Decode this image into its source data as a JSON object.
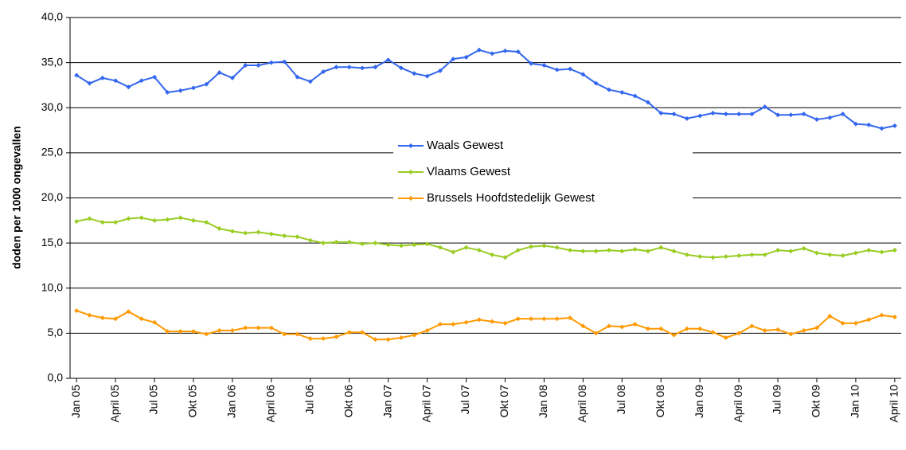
{
  "chart_data": {
    "type": "line",
    "y_label": "doden per  1000 ongevallen",
    "categories": [
      "Jan 05",
      null,
      null,
      "April 05",
      null,
      null,
      "Jul 05",
      null,
      null,
      "Okt 05",
      null,
      null,
      "Jan 06",
      null,
      null,
      "April 06",
      null,
      null,
      "Jul 06",
      null,
      null,
      "Okt 06",
      null,
      null,
      "Jan 07",
      null,
      null,
      "April 07",
      null,
      null,
      "Jul 07",
      null,
      null,
      "Okt 07",
      null,
      null,
      "Jan 08",
      null,
      null,
      "April 08",
      null,
      null,
      "Jul 08",
      null,
      null,
      "Okt 08",
      null,
      null,
      "Jan 09",
      null,
      null,
      "April 09",
      null,
      null,
      "Jul 09",
      null,
      null,
      "Okt 09",
      null,
      null,
      "Jan 10",
      null,
      null,
      "April 10"
    ],
    "series": [
      {
        "name": "Waals Gewest",
        "color": "#3366ee",
        "values": [
          33.6,
          32.7,
          33.3,
          33.0,
          32.3,
          33.0,
          33.4,
          31.7,
          31.9,
          32.2,
          32.6,
          33.9,
          33.3,
          34.7,
          34.7,
          35.0,
          35.1,
          33.4,
          32.9,
          34.0,
          34.5,
          34.5,
          34.4,
          34.5,
          35.3,
          34.4,
          33.8,
          33.5,
          34.1,
          35.4,
          35.6,
          36.4,
          36.0,
          36.3,
          36.2,
          34.9,
          34.7,
          34.2,
          34.3,
          33.7,
          32.7,
          32.0,
          31.7,
          31.3,
          30.6,
          29.4,
          29.3,
          28.8,
          29.1,
          29.4,
          29.3,
          29.3,
          29.3,
          30.1,
          29.2,
          29.2,
          29.3,
          28.7,
          28.9,
          29.3,
          28.2,
          28.1,
          27.7,
          28.0
        ]
      },
      {
        "name": "Vlaams Gewest",
        "color": "#99cc22",
        "values": [
          17.4,
          17.7,
          17.3,
          17.3,
          17.7,
          17.8,
          17.5,
          17.6,
          17.8,
          17.5,
          17.3,
          16.6,
          16.3,
          16.1,
          16.2,
          16.0,
          15.8,
          15.7,
          15.3,
          15.0,
          15.1,
          15.1,
          14.9,
          15.0,
          14.8,
          14.7,
          14.8,
          14.9,
          14.5,
          14.0,
          14.5,
          14.2,
          13.7,
          13.4,
          14.2,
          14.6,
          14.7,
          14.5,
          14.2,
          14.1,
          14.1,
          14.2,
          14.1,
          14.3,
          14.1,
          14.5,
          14.1,
          13.7,
          13.5,
          13.4,
          13.5,
          13.6,
          13.7,
          13.7,
          14.2,
          14.1,
          14.4,
          13.9,
          13.7,
          13.6,
          13.9,
          14.2,
          14.0,
          14.2
        ]
      },
      {
        "name": "Brussels Hoofdstedelijk Gewest",
        "color": "#ff9900",
        "values": [
          7.5,
          7.0,
          6.7,
          6.6,
          7.4,
          6.6,
          6.2,
          5.2,
          5.2,
          5.2,
          4.9,
          5.3,
          5.3,
          5.6,
          5.6,
          5.6,
          4.9,
          4.9,
          4.4,
          4.4,
          4.6,
          5.1,
          5.1,
          4.3,
          4.3,
          4.5,
          4.8,
          5.3,
          6.0,
          6.0,
          6.2,
          6.5,
          6.3,
          6.1,
          6.6,
          6.6,
          6.6,
          6.6,
          6.7,
          5.8,
          5.0,
          5.8,
          5.7,
          6.0,
          5.5,
          5.5,
          4.8,
          5.5,
          5.5,
          5.1,
          4.5,
          5.0,
          5.8,
          5.3,
          5.4,
          4.9,
          5.3,
          5.6,
          6.9,
          6.1,
          6.1,
          6.5,
          7.0,
          6.8
        ]
      }
    ],
    "ylim": [
      0,
      40
    ],
    "yticks": [
      {
        "value": 0,
        "label": "0,0"
      },
      {
        "value": 5,
        "label": "5,0"
      },
      {
        "value": 10,
        "label": "10,0"
      },
      {
        "value": 15,
        "label": "15,0"
      },
      {
        "value": 20,
        "label": "20,0"
      },
      {
        "value": 25,
        "label": "25,0"
      },
      {
        "value": 30,
        "label": "30,0"
      },
      {
        "value": 35,
        "label": "35,0"
      },
      {
        "value": 40,
        "label": "40,0"
      }
    ],
    "grid": true
  }
}
